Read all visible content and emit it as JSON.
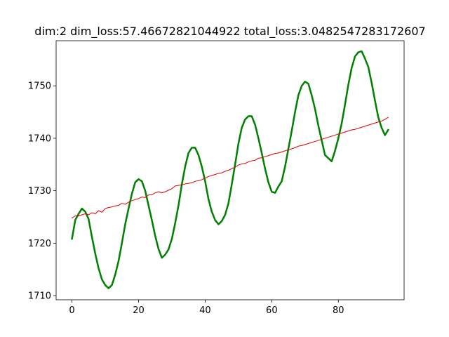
{
  "chart_data": {
    "type": "line",
    "title": "dim:2 dim_loss:57.46672821044922 total_loss:3.0482547283172607",
    "xlabel": "",
    "ylabel": "",
    "xlim": [
      -4.75,
      99.75
    ],
    "ylim": [
      1709.2,
      1758.6
    ],
    "grid": false,
    "legend": "none",
    "x_ticks": [
      0,
      20,
      40,
      60,
      80
    ],
    "x_tick_labels": [
      "0",
      "20",
      "40",
      "60",
      "80"
    ],
    "y_ticks": [
      1710,
      1720,
      1730,
      1740,
      1750
    ],
    "y_tick_labels": [
      "1710",
      "1720",
      "1730",
      "1740",
      "1750"
    ],
    "series": [
      {
        "color": "#008000",
        "linewidth": 2.5,
        "x": [
          0,
          1,
          2,
          3,
          4,
          5,
          6,
          7,
          8,
          9,
          10,
          11,
          12,
          13,
          14,
          15,
          16,
          17,
          18,
          19,
          20,
          21,
          22,
          23,
          24,
          25,
          26,
          27,
          28,
          29,
          30,
          31,
          32,
          33,
          34,
          35,
          36,
          37,
          38,
          39,
          40,
          41,
          42,
          43,
          44,
          45,
          46,
          47,
          48,
          49,
          50,
          51,
          52,
          53,
          54,
          55,
          56,
          57,
          58,
          59,
          60,
          61,
          62,
          63,
          64,
          65,
          66,
          67,
          68,
          69,
          70,
          71,
          72,
          73,
          74,
          75,
          76,
          77,
          78,
          79,
          80,
          81,
          82,
          83,
          84,
          85,
          86,
          87,
          88,
          89,
          90,
          91,
          92,
          93,
          94,
          95
        ],
        "values": [
          1720.8,
          1724.4,
          1725.6,
          1726.6,
          1726.0,
          1724.6,
          1721.2,
          1718.0,
          1715.2,
          1713.1,
          1712.0,
          1711.4,
          1712.0,
          1714.0,
          1716.6,
          1720.0,
          1723.6,
          1726.6,
          1729.4,
          1731.6,
          1732.2,
          1731.8,
          1730.0,
          1727.2,
          1724.4,
          1721.4,
          1718.9,
          1717.2,
          1717.8,
          1718.8,
          1720.8,
          1723.8,
          1727.2,
          1731.2,
          1734.6,
          1737.2,
          1738.2,
          1738.2,
          1736.8,
          1734.6,
          1731.8,
          1728.4,
          1726.0,
          1724.4,
          1723.6,
          1724.2,
          1725.4,
          1727.6,
          1731.2,
          1735.0,
          1739.0,
          1742.0,
          1743.6,
          1744.2,
          1744.2,
          1742.6,
          1740.0,
          1737.2,
          1734.2,
          1731.6,
          1729.8,
          1729.6,
          1730.8,
          1731.8,
          1734.6,
          1738.0,
          1741.4,
          1745.0,
          1748.2,
          1750.0,
          1750.8,
          1750.4,
          1748.2,
          1745.6,
          1742.4,
          1739.6,
          1736.8,
          1736.2,
          1735.6,
          1737.6,
          1740.0,
          1742.8,
          1746.4,
          1750.2,
          1753.4,
          1755.6,
          1756.4,
          1756.6,
          1755.2,
          1753.6,
          1750.6,
          1747.2,
          1744.0,
          1742.0,
          1740.6,
          1741.6
        ]
      },
      {
        "color": "#dd0000",
        "linewidth": 1,
        "x": [
          0,
          1,
          2,
          3,
          4,
          5,
          6,
          7,
          8,
          9,
          10,
          11,
          12,
          13,
          14,
          15,
          16,
          17,
          18,
          19,
          20,
          21,
          22,
          23,
          24,
          25,
          26,
          27,
          28,
          29,
          30,
          31,
          32,
          33,
          34,
          35,
          36,
          37,
          38,
          39,
          40,
          41,
          42,
          43,
          44,
          45,
          46,
          47,
          48,
          49,
          50,
          51,
          52,
          53,
          54,
          55,
          56,
          57,
          58,
          59,
          60,
          61,
          62,
          63,
          64,
          65,
          66,
          67,
          68,
          69,
          70,
          71,
          72,
          73,
          74,
          75,
          76,
          77,
          78,
          79,
          80,
          81,
          82,
          83,
          84,
          85,
          86,
          87,
          88,
          89,
          90,
          91,
          92,
          93,
          94,
          95
        ],
        "values": [
          1724.8,
          1725.2,
          1725.2,
          1725.4,
          1725.6,
          1725.4,
          1725.8,
          1725.6,
          1726.2,
          1725.9,
          1726.6,
          1726.8,
          1726.9,
          1727.1,
          1727.2,
          1727.6,
          1727.4,
          1727.8,
          1728.1,
          1728.3,
          1728.5,
          1728.8,
          1728.7,
          1729.2,
          1729.2,
          1729.6,
          1729.8,
          1729.6,
          1729.8,
          1730.1,
          1730.4,
          1730.9,
          1731.0,
          1731.1,
          1731.3,
          1731.4,
          1731.5,
          1731.8,
          1731.9,
          1732.1,
          1732.4,
          1732.7,
          1732.9,
          1733.1,
          1733.3,
          1733.4,
          1733.7,
          1733.9,
          1734.2,
          1734.5,
          1734.9,
          1735.1,
          1735.2,
          1735.5,
          1735.7,
          1735.8,
          1736.2,
          1736.3,
          1736.5,
          1736.7,
          1736.9,
          1737.1,
          1737.2,
          1737.4,
          1737.6,
          1737.8,
          1738.0,
          1738.2,
          1738.5,
          1738.6,
          1738.8,
          1739.0,
          1739.2,
          1739.4,
          1739.6,
          1739.8,
          1740.0,
          1740.2,
          1740.4,
          1740.6,
          1740.8,
          1741.0,
          1741.2,
          1741.4,
          1741.6,
          1741.7,
          1741.9,
          1742.1,
          1742.3,
          1742.5,
          1742.7,
          1742.9,
          1743.1,
          1743.3,
          1743.6,
          1744.0
        ]
      }
    ]
  }
}
